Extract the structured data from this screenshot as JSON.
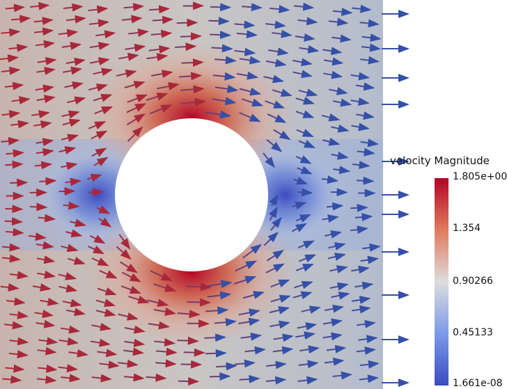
{
  "colorbar": {
    "title": "velocity Magnitude",
    "labels": [
      "1.805e+00",
      "1.354",
      "0.90266",
      "0.45133",
      "1.661e-08"
    ],
    "colors": {
      "low": "#3b4cc0",
      "mid": "#dddddd",
      "high": "#b40426"
    }
  },
  "field": {
    "background": "#c8c8c8",
    "obstacle": "circle",
    "obstacle_fill": "#ffffff",
    "glyph": "arrow-icon"
  }
}
